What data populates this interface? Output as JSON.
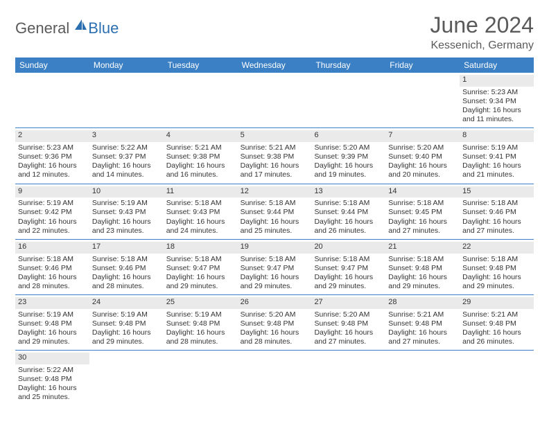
{
  "logo": {
    "general": "General",
    "blue": "Blue"
  },
  "title": "June 2024",
  "location": "Kessenich, Germany",
  "colors": {
    "header_bg": "#3b7fc4",
    "header_text": "#ffffff",
    "body_text": "#333333",
    "title_text": "#5a5a5a",
    "daynum_bg": "#eaeaea",
    "row_border": "#3b7fc4"
  },
  "day_names": [
    "Sunday",
    "Monday",
    "Tuesday",
    "Wednesday",
    "Thursday",
    "Friday",
    "Saturday"
  ],
  "weeks": [
    [
      null,
      null,
      null,
      null,
      null,
      null,
      {
        "n": "1",
        "sr": "Sunrise: 5:23 AM",
        "ss": "Sunset: 9:34 PM",
        "dl": "Daylight: 16 hours and 11 minutes."
      }
    ],
    [
      {
        "n": "2",
        "sr": "Sunrise: 5:23 AM",
        "ss": "Sunset: 9:36 PM",
        "dl": "Daylight: 16 hours and 12 minutes."
      },
      {
        "n": "3",
        "sr": "Sunrise: 5:22 AM",
        "ss": "Sunset: 9:37 PM",
        "dl": "Daylight: 16 hours and 14 minutes."
      },
      {
        "n": "4",
        "sr": "Sunrise: 5:21 AM",
        "ss": "Sunset: 9:38 PM",
        "dl": "Daylight: 16 hours and 16 minutes."
      },
      {
        "n": "5",
        "sr": "Sunrise: 5:21 AM",
        "ss": "Sunset: 9:38 PM",
        "dl": "Daylight: 16 hours and 17 minutes."
      },
      {
        "n": "6",
        "sr": "Sunrise: 5:20 AM",
        "ss": "Sunset: 9:39 PM",
        "dl": "Daylight: 16 hours and 19 minutes."
      },
      {
        "n": "7",
        "sr": "Sunrise: 5:20 AM",
        "ss": "Sunset: 9:40 PM",
        "dl": "Daylight: 16 hours and 20 minutes."
      },
      {
        "n": "8",
        "sr": "Sunrise: 5:19 AM",
        "ss": "Sunset: 9:41 PM",
        "dl": "Daylight: 16 hours and 21 minutes."
      }
    ],
    [
      {
        "n": "9",
        "sr": "Sunrise: 5:19 AM",
        "ss": "Sunset: 9:42 PM",
        "dl": "Daylight: 16 hours and 22 minutes."
      },
      {
        "n": "10",
        "sr": "Sunrise: 5:19 AM",
        "ss": "Sunset: 9:43 PM",
        "dl": "Daylight: 16 hours and 23 minutes."
      },
      {
        "n": "11",
        "sr": "Sunrise: 5:18 AM",
        "ss": "Sunset: 9:43 PM",
        "dl": "Daylight: 16 hours and 24 minutes."
      },
      {
        "n": "12",
        "sr": "Sunrise: 5:18 AM",
        "ss": "Sunset: 9:44 PM",
        "dl": "Daylight: 16 hours and 25 minutes."
      },
      {
        "n": "13",
        "sr": "Sunrise: 5:18 AM",
        "ss": "Sunset: 9:44 PM",
        "dl": "Daylight: 16 hours and 26 minutes."
      },
      {
        "n": "14",
        "sr": "Sunrise: 5:18 AM",
        "ss": "Sunset: 9:45 PM",
        "dl": "Daylight: 16 hours and 27 minutes."
      },
      {
        "n": "15",
        "sr": "Sunrise: 5:18 AM",
        "ss": "Sunset: 9:46 PM",
        "dl": "Daylight: 16 hours and 27 minutes."
      }
    ],
    [
      {
        "n": "16",
        "sr": "Sunrise: 5:18 AM",
        "ss": "Sunset: 9:46 PM",
        "dl": "Daylight: 16 hours and 28 minutes."
      },
      {
        "n": "17",
        "sr": "Sunrise: 5:18 AM",
        "ss": "Sunset: 9:46 PM",
        "dl": "Daylight: 16 hours and 28 minutes."
      },
      {
        "n": "18",
        "sr": "Sunrise: 5:18 AM",
        "ss": "Sunset: 9:47 PM",
        "dl": "Daylight: 16 hours and 29 minutes."
      },
      {
        "n": "19",
        "sr": "Sunrise: 5:18 AM",
        "ss": "Sunset: 9:47 PM",
        "dl": "Daylight: 16 hours and 29 minutes."
      },
      {
        "n": "20",
        "sr": "Sunrise: 5:18 AM",
        "ss": "Sunset: 9:47 PM",
        "dl": "Daylight: 16 hours and 29 minutes."
      },
      {
        "n": "21",
        "sr": "Sunrise: 5:18 AM",
        "ss": "Sunset: 9:48 PM",
        "dl": "Daylight: 16 hours and 29 minutes."
      },
      {
        "n": "22",
        "sr": "Sunrise: 5:18 AM",
        "ss": "Sunset: 9:48 PM",
        "dl": "Daylight: 16 hours and 29 minutes."
      }
    ],
    [
      {
        "n": "23",
        "sr": "Sunrise: 5:19 AM",
        "ss": "Sunset: 9:48 PM",
        "dl": "Daylight: 16 hours and 29 minutes."
      },
      {
        "n": "24",
        "sr": "Sunrise: 5:19 AM",
        "ss": "Sunset: 9:48 PM",
        "dl": "Daylight: 16 hours and 29 minutes."
      },
      {
        "n": "25",
        "sr": "Sunrise: 5:19 AM",
        "ss": "Sunset: 9:48 PM",
        "dl": "Daylight: 16 hours and 28 minutes."
      },
      {
        "n": "26",
        "sr": "Sunrise: 5:20 AM",
        "ss": "Sunset: 9:48 PM",
        "dl": "Daylight: 16 hours and 28 minutes."
      },
      {
        "n": "27",
        "sr": "Sunrise: 5:20 AM",
        "ss": "Sunset: 9:48 PM",
        "dl": "Daylight: 16 hours and 27 minutes."
      },
      {
        "n": "28",
        "sr": "Sunrise: 5:21 AM",
        "ss": "Sunset: 9:48 PM",
        "dl": "Daylight: 16 hours and 27 minutes."
      },
      {
        "n": "29",
        "sr": "Sunrise: 5:21 AM",
        "ss": "Sunset: 9:48 PM",
        "dl": "Daylight: 16 hours and 26 minutes."
      }
    ],
    [
      {
        "n": "30",
        "sr": "Sunrise: 5:22 AM",
        "ss": "Sunset: 9:48 PM",
        "dl": "Daylight: 16 hours and 25 minutes."
      },
      null,
      null,
      null,
      null,
      null,
      null
    ]
  ]
}
